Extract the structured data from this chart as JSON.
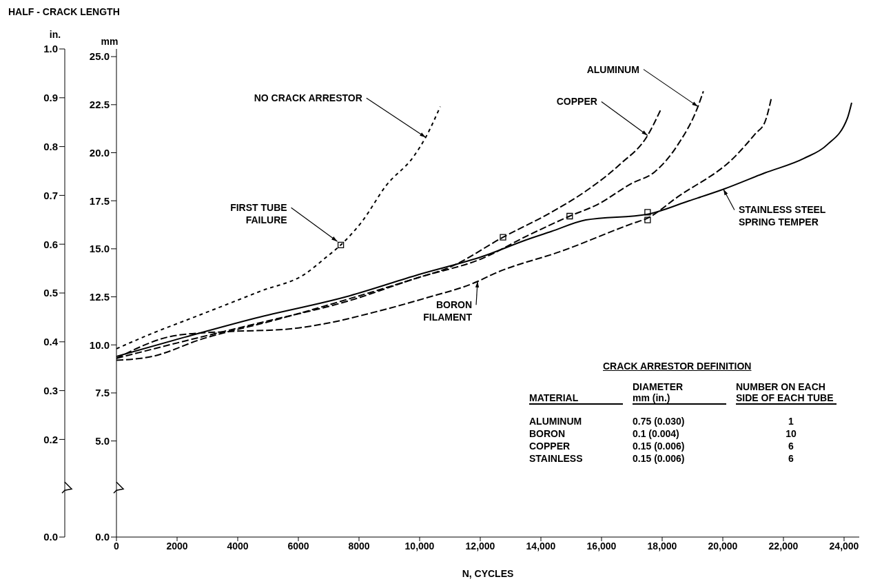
{
  "chart_data": {
    "type": "line",
    "title": "HALF - CRACK LENGTH",
    "xlabel": "N, CYCLES",
    "ylabel": "mm",
    "y2label": "in.",
    "xlim": [
      0,
      24500
    ],
    "xticks": [
      0,
      2000,
      4000,
      6000,
      8000,
      {
        "value": 10000,
        "label": "10,000"
      },
      {
        "value": 12000,
        "label": "12,000"
      },
      {
        "value": 14000,
        "label": "14,000"
      },
      {
        "value": 16000,
        "label": "16,000"
      },
      {
        "value": 18000,
        "label": "18,000"
      },
      {
        "value": 20000,
        "label": "20,000"
      },
      {
        "value": 22000,
        "label": "22,000"
      },
      {
        "value": 24000,
        "label": "24,000"
      }
    ],
    "ylim": [
      0,
      25.4
    ],
    "yticks": [
      {
        "value": 0,
        "label": "0.0"
      },
      {
        "value": 5,
        "label": "5.0"
      },
      7.5,
      {
        "value": 10,
        "label": "10.0"
      },
      12.5,
      {
        "value": 15,
        "label": "15.0"
      },
      17.5,
      {
        "value": 20,
        "label": "20.0"
      },
      22.5,
      {
        "value": 25,
        "label": "25.0"
      }
    ],
    "y2lim": [
      0,
      1.0
    ],
    "y2ticks": [
      {
        "value": 0,
        "label": "0.0"
      },
      0.2,
      0.3,
      0.4,
      0.5,
      0.6,
      0.7,
      0.8,
      0.9,
      {
        "value": 1.0,
        "label": "1.0"
      }
    ],
    "series": [
      {
        "name": "NO CRACK ARRESTOR",
        "color": "#000000",
        "line_style": "dotted",
        "x": [
          0,
          1180,
          2490,
          3630,
          4760,
          6230,
          6870,
          7400,
          8090,
          8900,
          9800,
          10200,
          10680
        ],
        "values": [
          9.8,
          10.6,
          11.4,
          12.1,
          12.8,
          13.7,
          14.5,
          15.2,
          16.4,
          18.3,
          19.8,
          20.8,
          22.4
        ]
      },
      {
        "name": "ALUMINUM",
        "color": "#000000",
        "line_style": "dashed",
        "x": [
          0,
          2250,
          4600,
          7680,
          9950,
          12070,
          13580,
          14950,
          15860,
          16990,
          17750,
          18510,
          19180,
          19360
        ],
        "values": [
          9.3,
          10.2,
          11.1,
          12.3,
          13.5,
          14.5,
          15.7,
          16.7,
          17.3,
          18.4,
          19.0,
          20.4,
          22.4,
          23.2
        ]
      },
      {
        "name": "COPPER",
        "color": "#000000",
        "line_style": "dashed",
        "x": [
          0,
          1180,
          2810,
          5250,
          7680,
          9950,
          10930,
          12750,
          14340,
          15480,
          16610,
          17520,
          17940
        ],
        "values": [
          9.2,
          9.4,
          10.3,
          11.3,
          12.4,
          13.5,
          14.0,
          15.6,
          16.9,
          18.0,
          19.4,
          20.9,
          22.2
        ]
      },
      {
        "name": "BORON\nFILAMENT",
        "color": "#000000",
        "line_style": "dashed",
        "x": [
          0,
          2000,
          3790,
          5490,
          6870,
          8500,
          10120,
          11910,
          12450,
          14720,
          16990,
          17520,
          18510,
          20400,
          21080,
          21390,
          21610
        ],
        "values": [
          9.3,
          10.5,
          10.7,
          10.8,
          11.1,
          11.7,
          12.4,
          13.3,
          13.7,
          14.9,
          16.3,
          16.6,
          17.7,
          19.8,
          21.0,
          21.6,
          22.9
        ]
      },
      {
        "name": "STAINLESS STEEL\nSPRING TEMPER",
        "color": "#000000",
        "line_style": "solid",
        "x": [
          0,
          2250,
          4600,
          7680,
          9950,
          12070,
          13580,
          14340,
          15480,
          17520,
          18890,
          20020,
          21390,
          22670,
          23430,
          24110,
          24250
        ],
        "values": [
          9.4,
          10.4,
          11.4,
          12.55,
          13.65,
          14.6,
          15.5,
          15.9,
          16.5,
          16.8,
          17.5,
          18.1,
          18.95,
          19.7,
          20.4,
          21.8,
          22.6
        ]
      },
      {
        "type": "scatter",
        "marker": "square",
        "color": "#000000",
        "x": [
          7400,
          12750,
          14950,
          17520,
          17520
        ],
        "values": [
          15.2,
          15.6,
          16.7,
          16.9,
          16.5
        ]
      }
    ],
    "annotations": [
      {
        "text": "FIRST TUBE\nFAILURE",
        "x": 7400,
        "y": 15.2
      },
      "CRACK ARRESTOR DEFINITION",
      "MATERIAL",
      "DIAMETER\nmm (in.)",
      "NUMBER ON EACH\nSIDE OF EACH TUBE",
      "ALUMINUM",
      "0.75 (0.030)",
      "1",
      "BORON",
      "0.1 (0.004)",
      "10",
      "COPPER",
      "0.15 (0.006)",
      "6",
      "STAINLESS",
      "0.15 (0.006)",
      "6"
    ]
  }
}
